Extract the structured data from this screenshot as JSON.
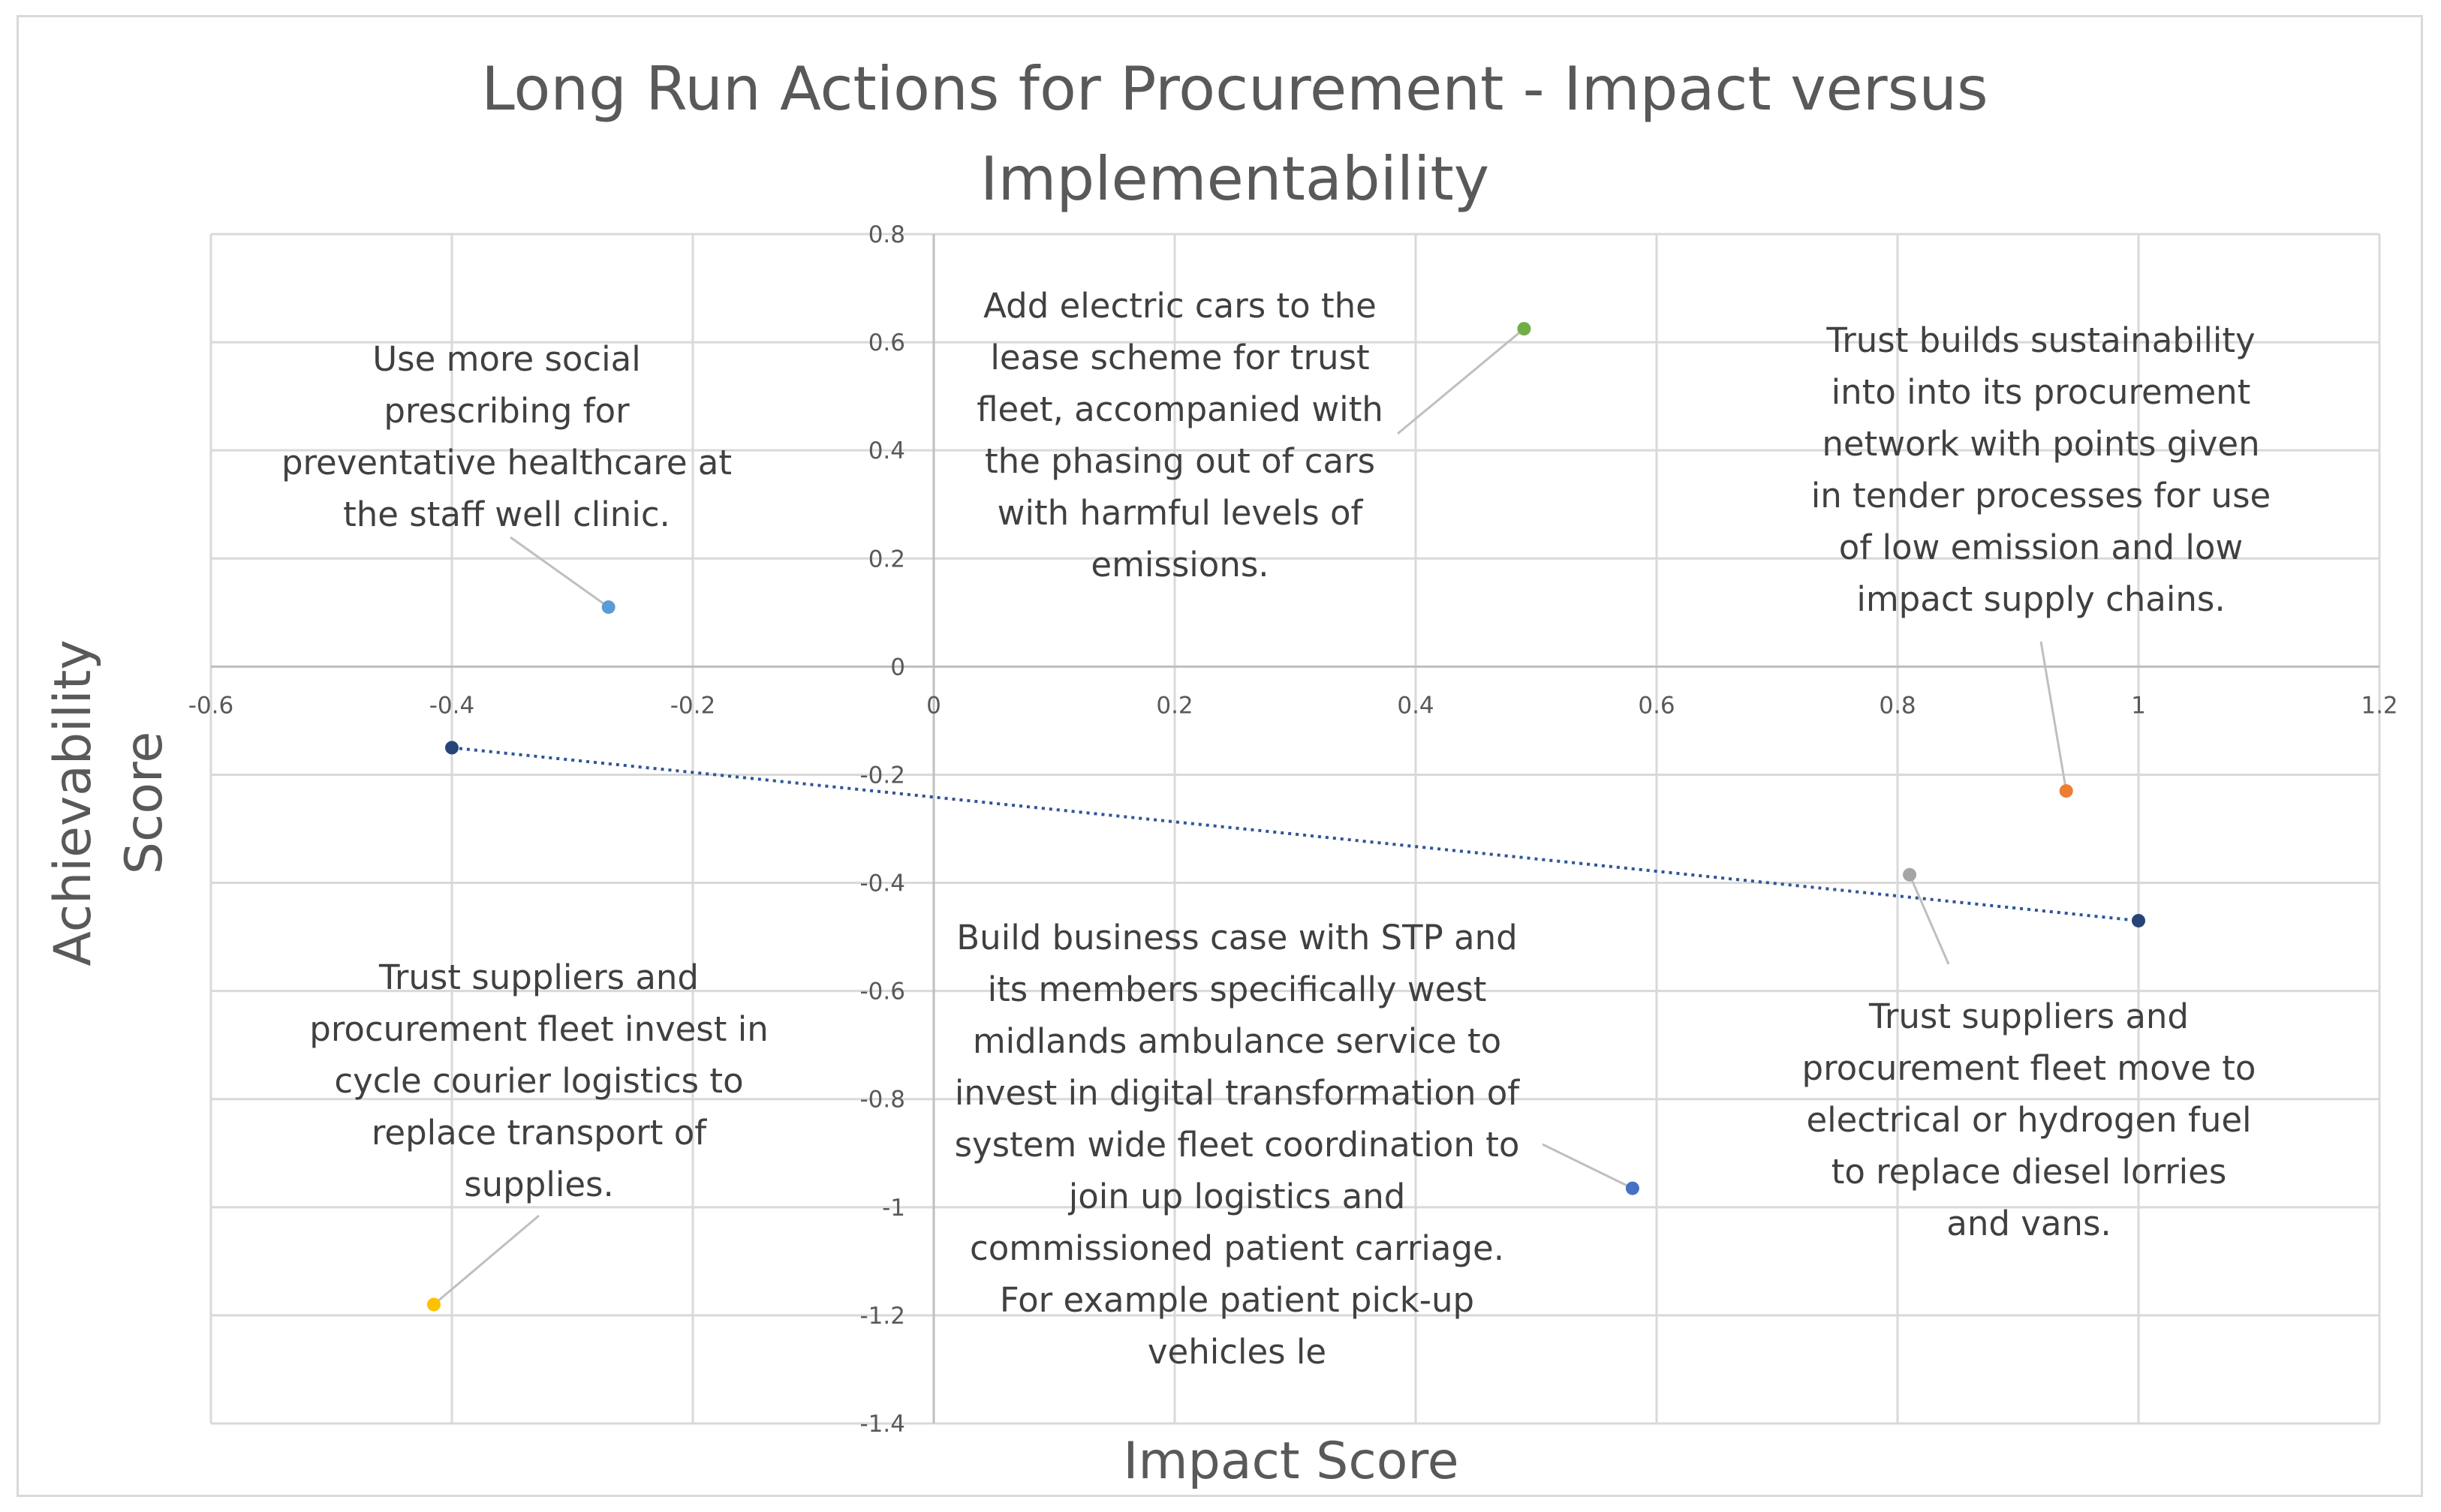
{
  "chart_data": {
    "type": "scatter",
    "title_lines": [
      "Long Run Actions for Procurement - Impact versus",
      "Implementability"
    ],
    "xlabel": "Impact Score",
    "ylabel_lines": [
      "Achievability",
      "Score"
    ],
    "xlim": [
      -0.6,
      1.2
    ],
    "ylim": [
      -1.4,
      0.8
    ],
    "x_ticks": [
      "-0.6",
      "-0.4",
      "-0.2",
      "0",
      "0.2",
      "0.4",
      "0.6",
      "0.8",
      "1",
      "1.2"
    ],
    "y_ticks": [
      "0.8",
      "0.6",
      "0.4",
      "0.2",
      "0",
      "-0.2",
      "-0.4",
      "-0.6",
      "-0.8",
      "-1",
      "-1.2",
      "-1.4"
    ],
    "trendline": {
      "x": [
        -0.4,
        1.0
      ],
      "y": [
        -0.15,
        -0.47
      ],
      "color": "#2f5597"
    },
    "points": [
      {
        "name": "social-prescribing",
        "x": -0.27,
        "y": 0.11,
        "color": "#5b9bd5",
        "label_lines": [
          "Use more social",
          "prescribing for",
          "preventative healthcare at",
          "the staff well clinic."
        ]
      },
      {
        "name": "electric-cars",
        "x": 0.49,
        "y": 0.625,
        "color": "#70ad47",
        "label_lines": [
          "Add electric cars to the",
          "lease scheme for trust",
          "fleet, accompanied with",
          "the phasing out of cars",
          "with harmful levels of",
          "emissions."
        ]
      },
      {
        "name": "sustainability-procurement",
        "x": 0.94,
        "y": -0.23,
        "color": "#ed7d31",
        "label_lines": [
          "Trust builds sustainability",
          "into into its procurement",
          "network with points given",
          "in tender processes for use",
          "of low emission and low",
          "impact supply chains."
        ]
      },
      {
        "name": "electrical-hydrogen-fuel",
        "x": 0.81,
        "y": -0.385,
        "color": "#a5a5a5",
        "label_lines": [
          "Trust suppliers and",
          "procurement fleet move to",
          "electrical or hydrogen fuel",
          "to replace diesel lorries",
          "and vans."
        ]
      },
      {
        "name": "digital-transformation",
        "x": 0.58,
        "y": -0.965,
        "color": "#4472c4",
        "label_lines": [
          "Build business case with STP and",
          "its members specifically west",
          "midlands ambulance service to",
          "invest in digital transformation of",
          "system wide fleet coordination to",
          "join up logistics and",
          "commissioned patient carriage.",
          "For example patient pick-up",
          "vehicles le"
        ]
      },
      {
        "name": "cycle-courier",
        "x": -0.415,
        "y": -1.18,
        "color": "#ffc000",
        "label_lines": [
          "Trust suppliers and",
          "procurement fleet invest in",
          "cycle courier logistics to",
          "replace transport of",
          "supplies."
        ]
      },
      {
        "name": "trend-start",
        "x": -0.4,
        "y": -0.15,
        "color": "#264478",
        "label_lines": []
      },
      {
        "name": "trend-end",
        "x": 1.0,
        "y": -0.47,
        "color": "#264478",
        "label_lines": []
      }
    ]
  }
}
